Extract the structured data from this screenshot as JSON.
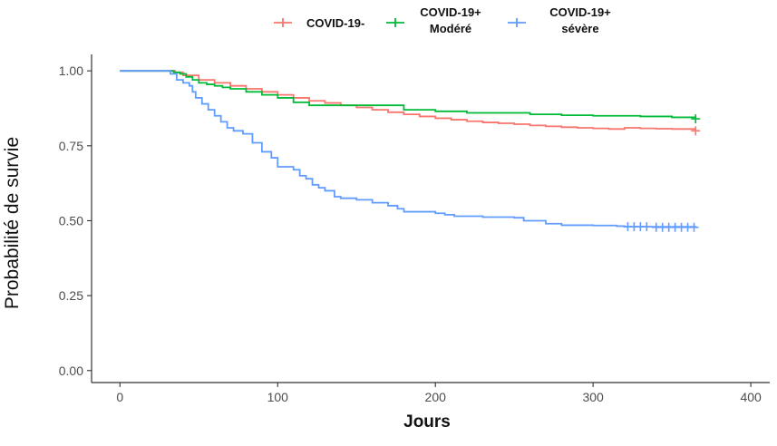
{
  "chart_data": {
    "type": "line",
    "title": "",
    "xlabel": "Jours",
    "ylabel": "Probabilité de survie",
    "xlim": [
      -18,
      412
    ],
    "ylim": [
      -0.04,
      1.055
    ],
    "x_ticks": [
      0,
      100,
      200,
      300,
      400
    ],
    "y_ticks": [
      0.0,
      0.25,
      0.5,
      0.75,
      1.0
    ],
    "x_tick_labels": [
      "0",
      "100",
      "200",
      "300",
      "400"
    ],
    "y_tick_labels": [
      "0.00",
      "0.25",
      "0.50",
      "0.75",
      "1.00"
    ],
    "grid": false,
    "legend_position": "top",
    "step": true,
    "series": [
      {
        "name": "COVID-19-",
        "color": "#F8766D",
        "points": [
          [
            0,
            1.0
          ],
          [
            30,
            1.0
          ],
          [
            35,
            0.995
          ],
          [
            40,
            0.985
          ],
          [
            50,
            0.97
          ],
          [
            60,
            0.96
          ],
          [
            70,
            0.95
          ],
          [
            80,
            0.94
          ],
          [
            90,
            0.93
          ],
          [
            100,
            0.92
          ],
          [
            110,
            0.91
          ],
          [
            120,
            0.9
          ],
          [
            130,
            0.893
          ],
          [
            140,
            0.885
          ],
          [
            150,
            0.878
          ],
          [
            160,
            0.87
          ],
          [
            170,
            0.862
          ],
          [
            180,
            0.855
          ],
          [
            190,
            0.848
          ],
          [
            200,
            0.842
          ],
          [
            210,
            0.837
          ],
          [
            220,
            0.832
          ],
          [
            230,
            0.828
          ],
          [
            240,
            0.825
          ],
          [
            250,
            0.822
          ],
          [
            260,
            0.818
          ],
          [
            270,
            0.815
          ],
          [
            280,
            0.812
          ],
          [
            290,
            0.81
          ],
          [
            300,
            0.808
          ],
          [
            310,
            0.806
          ],
          [
            320,
            0.81
          ],
          [
            330,
            0.808
          ],
          [
            340,
            0.807
          ],
          [
            350,
            0.806
          ],
          [
            365,
            0.805
          ]
        ],
        "censored": [
          [
            365,
            0.8
          ]
        ]
      },
      {
        "name": "COVID-19+ Modéré",
        "color": "#00BA38",
        "points": [
          [
            0,
            1.0
          ],
          [
            30,
            1.0
          ],
          [
            34,
            0.995
          ],
          [
            38,
            0.99
          ],
          [
            42,
            0.98
          ],
          [
            46,
            0.97
          ],
          [
            50,
            0.96
          ],
          [
            55,
            0.955
          ],
          [
            60,
            0.95
          ],
          [
            65,
            0.945
          ],
          [
            70,
            0.94
          ],
          [
            80,
            0.93
          ],
          [
            90,
            0.92
          ],
          [
            100,
            0.91
          ],
          [
            110,
            0.895
          ],
          [
            120,
            0.885
          ],
          [
            150,
            0.885
          ],
          [
            160,
            0.885
          ],
          [
            170,
            0.885
          ],
          [
            180,
            0.87
          ],
          [
            200,
            0.865
          ],
          [
            220,
            0.86
          ],
          [
            260,
            0.855
          ],
          [
            280,
            0.852
          ],
          [
            300,
            0.85
          ],
          [
            330,
            0.848
          ],
          [
            350,
            0.845
          ],
          [
            365,
            0.842
          ]
        ],
        "censored": [
          [
            365,
            0.84
          ]
        ]
      },
      {
        "name": "COVID-19+ sévère",
        "color": "#619CFF",
        "points": [
          [
            0,
            1.0
          ],
          [
            30,
            1.0
          ],
          [
            32,
            0.99
          ],
          [
            36,
            0.97
          ],
          [
            40,
            0.96
          ],
          [
            44,
            0.95
          ],
          [
            46,
            0.93
          ],
          [
            48,
            0.91
          ],
          [
            52,
            0.89
          ],
          [
            56,
            0.87
          ],
          [
            60,
            0.85
          ],
          [
            64,
            0.83
          ],
          [
            68,
            0.81
          ],
          [
            72,
            0.8
          ],
          [
            78,
            0.79
          ],
          [
            84,
            0.76
          ],
          [
            90,
            0.73
          ],
          [
            96,
            0.71
          ],
          [
            100,
            0.68
          ],
          [
            110,
            0.67
          ],
          [
            114,
            0.65
          ],
          [
            118,
            0.64
          ],
          [
            122,
            0.62
          ],
          [
            126,
            0.61
          ],
          [
            130,
            0.6
          ],
          [
            136,
            0.58
          ],
          [
            140,
            0.575
          ],
          [
            150,
            0.57
          ],
          [
            160,
            0.56
          ],
          [
            170,
            0.55
          ],
          [
            176,
            0.54
          ],
          [
            180,
            0.53
          ],
          [
            200,
            0.525
          ],
          [
            206,
            0.52
          ],
          [
            212,
            0.515
          ],
          [
            230,
            0.512
          ],
          [
            250,
            0.51
          ],
          [
            256,
            0.5
          ],
          [
            270,
            0.49
          ],
          [
            280,
            0.485
          ],
          [
            300,
            0.484
          ],
          [
            315,
            0.482
          ],
          [
            320,
            0.48
          ],
          [
            365,
            0.478
          ]
        ],
        "censored": [
          [
            322,
            0.48
          ],
          [
            326,
            0.48
          ],
          [
            330,
            0.48
          ],
          [
            334,
            0.48
          ],
          [
            340,
            0.478
          ],
          [
            344,
            0.478
          ],
          [
            348,
            0.478
          ],
          [
            352,
            0.478
          ],
          [
            356,
            0.478
          ],
          [
            360,
            0.478
          ],
          [
            364,
            0.478
          ]
        ]
      }
    ]
  }
}
